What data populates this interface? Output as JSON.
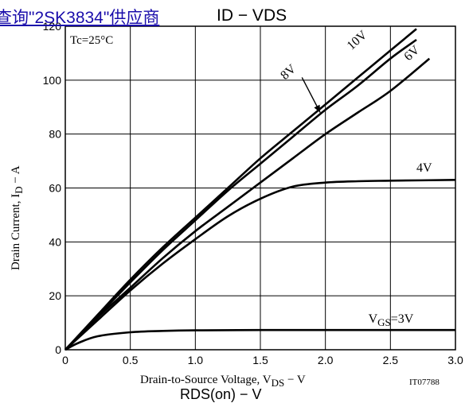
{
  "overlay_link": "查询\"2SK3834\"供应商",
  "header_title": "ID − VDS",
  "footer_partial": "RDS(on) − V",
  "chart_data": {
    "type": "line",
    "title": "ID − VDS",
    "xlabel": "Drain-to-Source Voltage, VDS − V",
    "ylabel": "Drain Current, ID − A",
    "xlim": [
      0,
      3.0
    ],
    "ylim": [
      0,
      120
    ],
    "xticks": [
      0,
      0.5,
      1.0,
      1.5,
      2.0,
      2.5,
      3.0
    ],
    "xtick_labels": [
      "0",
      "0.5",
      "1.0",
      "1.5",
      "2.0",
      "2.5",
      "3.0"
    ],
    "yticks": [
      0,
      20,
      40,
      60,
      80,
      100,
      120
    ],
    "ytick_labels": [
      "0",
      "20",
      "40",
      "60",
      "80",
      "100",
      "120"
    ],
    "grid": true,
    "condition": "Tc=25°C",
    "figure_code": "IT07788",
    "series": [
      {
        "name": "10V",
        "x": [
          0,
          0.25,
          0.5,
          0.75,
          1.0,
          1.25,
          1.5,
          1.75,
          2.0,
          2.25,
          2.5,
          2.7
        ],
        "y": [
          0,
          13,
          26,
          38,
          49,
          60,
          71,
          81,
          91,
          101,
          111,
          119
        ]
      },
      {
        "name": "8V",
        "x": [
          0,
          0.25,
          0.5,
          0.75,
          1.0,
          1.25,
          1.5,
          1.75,
          2.0,
          2.25,
          2.5,
          2.7
        ],
        "y": [
          0,
          12.5,
          25,
          37,
          48,
          59,
          69,
          79,
          89,
          98,
          108,
          115
        ]
      },
      {
        "name": "6V",
        "x": [
          0,
          0.25,
          0.5,
          0.75,
          1.0,
          1.25,
          1.5,
          1.75,
          2.0,
          2.25,
          2.5,
          2.8
        ],
        "y": [
          0,
          12,
          23,
          34,
          44,
          53,
          62,
          71,
          80,
          88,
          96,
          108
        ]
      },
      {
        "name": "4V",
        "x": [
          0,
          0.25,
          0.5,
          0.75,
          1.0,
          1.25,
          1.5,
          1.75,
          2.0,
          2.25,
          2.5,
          3.0
        ],
        "y": [
          0,
          11,
          22,
          32,
          41,
          49.5,
          56,
          60.5,
          62,
          62.5,
          62.7,
          63
        ]
      },
      {
        "name": "VGS=3V",
        "x": [
          0,
          0.1,
          0.25,
          0.5,
          0.75,
          1.0,
          1.5,
          2.0,
          3.0
        ],
        "y": [
          0,
          2.5,
          5,
          6.5,
          7,
          7.2,
          7.3,
          7.3,
          7.3
        ]
      }
    ],
    "labels": [
      {
        "text": "10V",
        "x": 2.2,
        "y": 111
      },
      {
        "text": "8V",
        "x": 1.69,
        "y": 100
      },
      {
        "text": "6V",
        "x": 2.64,
        "y": 107
      },
      {
        "text": "4V",
        "x": 2.7,
        "y": 66
      },
      {
        "text": "VGS=3V",
        "x": 2.33,
        "y": 10
      }
    ],
    "arrow_8v": {
      "x1": 1.82,
      "y1": 101,
      "x2": 1.96,
      "y2": 88
    }
  }
}
